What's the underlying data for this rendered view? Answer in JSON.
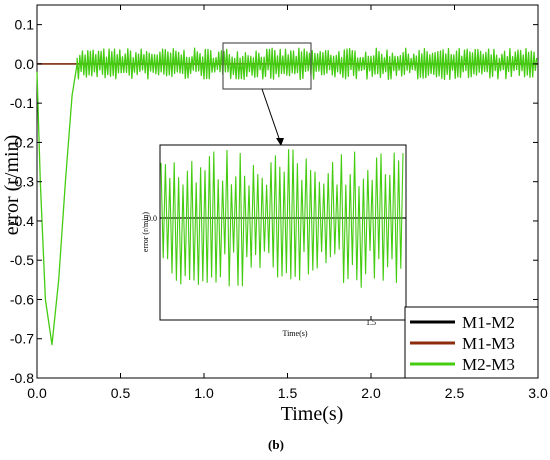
{
  "chart_data": {
    "type": "line",
    "title": "",
    "xlabel": "Time(s)",
    "ylabel": "error (r/min)",
    "xlim": [
      0,
      3.0
    ],
    "ylim": [
      -0.8,
      0.15
    ],
    "xticks": [
      "0.0",
      "0.5",
      "1.0",
      "1.5",
      "2.0",
      "2.5",
      "3.0"
    ],
    "yticks": [
      "0.1",
      "0.0",
      "-0.1",
      "-0.2",
      "-0.3",
      "-0.4",
      "-0.5",
      "-0.6",
      "-0.7",
      "-0.8"
    ],
    "legend_position": "bottom-right",
    "series": [
      {
        "name": "M1-M2",
        "color": "#000000",
        "x": [
          0,
          3.0
        ],
        "values": [
          0.0,
          0.0
        ]
      },
      {
        "name": "M1-M3",
        "color": "#8b2d0b",
        "x": [
          0,
          3.0
        ],
        "values": [
          0.0,
          0.0
        ]
      },
      {
        "name": "M2-M3",
        "color": "#44cc11",
        "transient": {
          "x": [
            0,
            0.02,
            0.05,
            0.09,
            0.13,
            0.17,
            0.21,
            0.24
          ],
          "values": [
            -0.02,
            -0.3,
            -0.6,
            -0.715,
            -0.55,
            -0.3,
            -0.08,
            0.0
          ]
        },
        "steady": {
          "x_start": 0.24,
          "x_end": 3.0,
          "range": [
            -0.035,
            0.045
          ]
        }
      }
    ],
    "inset": {
      "zoom_region": {
        "x": [
          0.95,
          1.55
        ],
        "y": [
          -0.045,
          0.045
        ]
      },
      "xlabel": "Time(s)",
      "ylabel": "error (r/min)",
      "xticks": [
        "1.5"
      ],
      "yticks": [
        "0.0"
      ]
    }
  },
  "caption": "(b)"
}
